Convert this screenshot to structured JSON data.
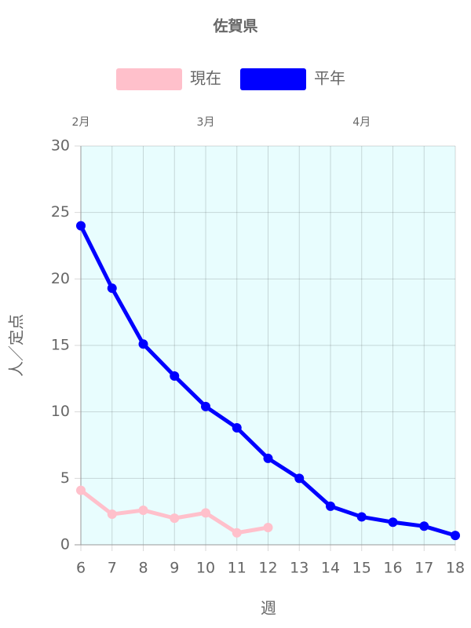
{
  "chart_data": {
    "type": "line",
    "title": "佐賀県",
    "x": [
      6,
      7,
      8,
      9,
      10,
      11,
      12,
      13,
      14,
      15,
      16,
      17,
      18
    ],
    "series": [
      {
        "name": "現在",
        "color": "#ffc0cb",
        "values": [
          4.1,
          2.3,
          2.6,
          2.0,
          2.4,
          0.9,
          1.3,
          null,
          null,
          null,
          null,
          null,
          null
        ]
      },
      {
        "name": "平年",
        "color": "#0000ff",
        "values": [
          24.0,
          19.3,
          15.1,
          12.7,
          10.4,
          8.8,
          6.5,
          5.0,
          2.9,
          2.1,
          1.7,
          1.4,
          0.7
        ]
      }
    ],
    "xlim": [
      6,
      18
    ],
    "xticks": [
      6,
      7,
      8,
      9,
      10,
      11,
      12,
      13,
      14,
      15,
      16,
      17,
      18
    ],
    "ylim": [
      0,
      30
    ],
    "yticks": [
      0,
      5,
      10,
      15,
      20,
      25,
      30
    ],
    "x_label": "週",
    "y_label": "人／定点",
    "x_annotations": [
      {
        "x": 6,
        "label": "2月"
      },
      {
        "x": 10,
        "label": "3月"
      },
      {
        "x": 15,
        "label": "4月"
      }
    ],
    "grid": true,
    "legend": "top",
    "background": "#e8fdfe"
  }
}
